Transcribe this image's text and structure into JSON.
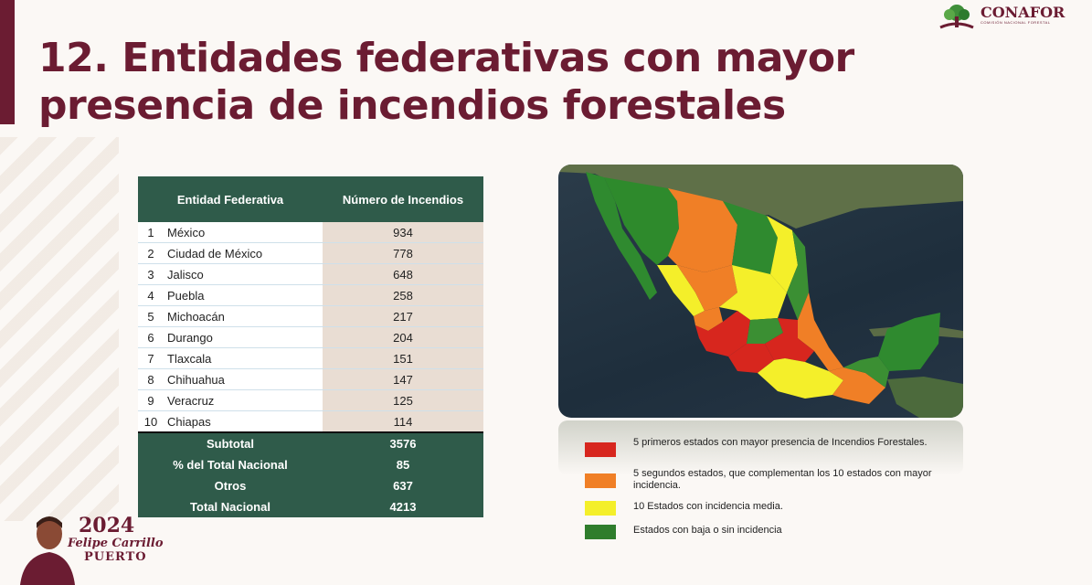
{
  "title_line1": "12. Entidades federativas con mayor",
  "title_line2": "presencia de incendios forestales",
  "logo": {
    "text": "CONAFOR",
    "subtitle": "COMISIÓN NACIONAL FORESTAL"
  },
  "table": {
    "headers": [
      "Entidad Federativa",
      "Número de Incendios"
    ],
    "rows": [
      {
        "rank": "1",
        "name": "México",
        "value": "934"
      },
      {
        "rank": "2",
        "name": "Ciudad de México",
        "value": "778"
      },
      {
        "rank": "3",
        "name": "Jalisco",
        "value": "648"
      },
      {
        "rank": "4",
        "name": "Puebla",
        "value": "258"
      },
      {
        "rank": "5",
        "name": "Michoacán",
        "value": "217"
      },
      {
        "rank": "6",
        "name": "Durango",
        "value": "204"
      },
      {
        "rank": "7",
        "name": "Tlaxcala",
        "value": "151"
      },
      {
        "rank": "8",
        "name": "Chihuahua",
        "value": "147"
      },
      {
        "rank": "9",
        "name": "Veracruz",
        "value": "125"
      },
      {
        "rank": "10",
        "name": "Chiapas",
        "value": "114"
      }
    ],
    "summary": [
      {
        "label": "Subtotal",
        "value": "3576"
      },
      {
        "label": "% del Total Nacional",
        "value": "85"
      },
      {
        "label": "Otros",
        "value": "637"
      },
      {
        "label": "Total Nacional",
        "value": "4213"
      }
    ]
  },
  "legend": [
    {
      "color": "#d7261e",
      "text": "5 primeros estados con mayor presencia de Incendios Forestales."
    },
    {
      "color": "#f07f26",
      "text": "5 segundos estados, que complementan los 10 estados con mayor incidencia."
    },
    {
      "color": "#f4ef2a",
      "text": "10 Estados con incidencia media."
    },
    {
      "color": "#2f7d2c",
      "text": "Estados con baja o sin incidencia"
    }
  ],
  "footer": {
    "year": "2024",
    "name": "Felipe Carrillo",
    "puerto": "PUERTO"
  }
}
